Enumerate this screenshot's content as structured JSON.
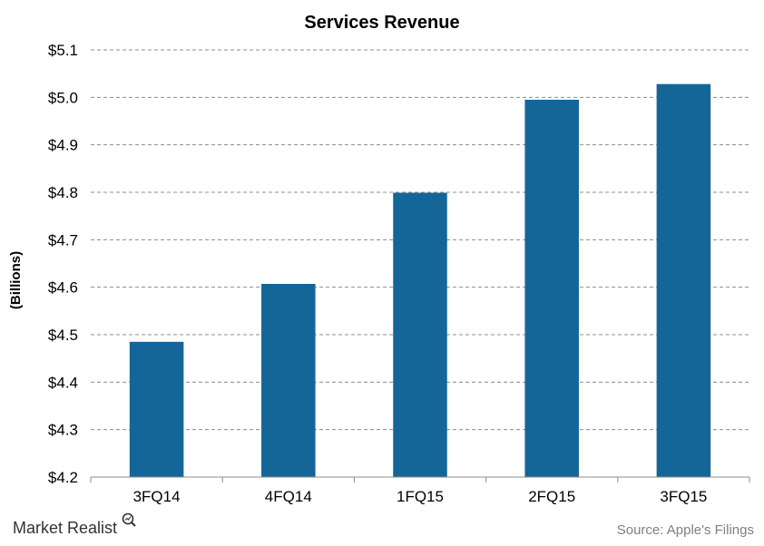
{
  "chart_data": {
    "type": "bar",
    "title": "Services Revenue",
    "ylabel": "(Billions)",
    "xlabel": "",
    "categories": [
      "3FQ14",
      "4FQ14",
      "1FQ15",
      "2FQ15",
      "3FQ15"
    ],
    "values": [
      4.485,
      4.607,
      4.799,
      4.995,
      5.028
    ],
    "ylim": [
      4.2,
      5.1
    ],
    "yticks": [
      "$4.2",
      "$4.3",
      "$4.4",
      "$4.5",
      "$4.6",
      "$4.7",
      "$4.8",
      "$4.9",
      "$5.0",
      "$5.1"
    ],
    "ytick_values": [
      4.2,
      4.3,
      4.4,
      4.5,
      4.6,
      4.7,
      4.8,
      4.9,
      5.0,
      5.1
    ],
    "grid": true,
    "bar_color": "#156698"
  },
  "branding": {
    "logo_text": "Market Realist",
    "logo_icon": "magnifier-icon"
  },
  "source": "Source: Apple's Filings"
}
